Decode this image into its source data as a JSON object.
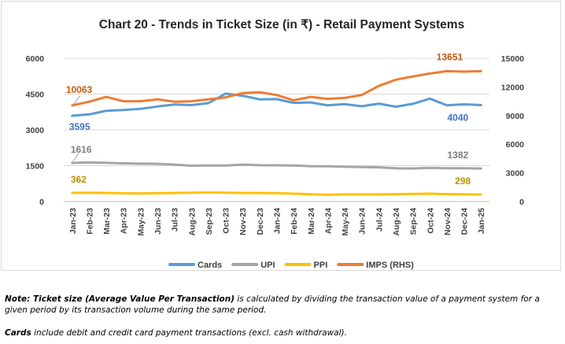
{
  "chart_data": {
    "type": "line",
    "title": "Chart 20 - Trends in Ticket Size (in ₹) - Retail Payment Systems",
    "categories": [
      "Jan-23",
      "Feb-23",
      "Mar-23",
      "Apr-23",
      "May-23",
      "Jun-23",
      "Jul-23",
      "Aug-23",
      "Sep-23",
      "Oct-23",
      "Nov-23",
      "Dec-23",
      "Jan-24",
      "Feb-24",
      "Mar-24",
      "Apr-24",
      "May-24",
      "Jun-24",
      "Jul-24",
      "Aug-24",
      "Sep-24",
      "Oct-24",
      "Nov-24",
      "Dec-24",
      "Jan-25"
    ],
    "y_left": {
      "min": 0,
      "max": 6000,
      "ticks": [
        "0",
        "1500",
        "3000",
        "4500",
        "6000"
      ]
    },
    "y_right": {
      "min": 0,
      "max": 15000,
      "ticks": [
        "0",
        "3000",
        "6000",
        "9000",
        "12000",
        "15000"
      ]
    },
    "series": [
      {
        "name": "Cards",
        "axis": "left",
        "color": "#5b9bd5",
        "values": [
          3595,
          3650,
          3800,
          3830,
          3880,
          3980,
          4060,
          4040,
          4120,
          4520,
          4430,
          4280,
          4290,
          4130,
          4150,
          4030,
          4080,
          3990,
          4100,
          3970,
          4090,
          4310,
          4030,
          4070,
          4040
        ],
        "start_label": "3595",
        "end_label": "4040"
      },
      {
        "name": "UPI",
        "axis": "left",
        "color": "#a5a5a5",
        "values": [
          1616,
          1640,
          1620,
          1600,
          1585,
          1580,
          1545,
          1500,
          1505,
          1510,
          1545,
          1520,
          1515,
          1510,
          1480,
          1475,
          1460,
          1445,
          1430,
          1390,
          1385,
          1410,
          1390,
          1395,
          1382
        ],
        "start_label": "1616",
        "end_label": "1382"
      },
      {
        "name": "PPI",
        "axis": "left",
        "color": "#ffc000",
        "values": [
          362,
          365,
          360,
          345,
          340,
          350,
          360,
          370,
          375,
          370,
          360,
          360,
          350,
          330,
          305,
          280,
          300,
          300,
          300,
          305,
          315,
          330,
          310,
          300,
          298
        ],
        "start_label": "362",
        "end_label": "298"
      },
      {
        "name": "IMPS (RHS)",
        "axis": "right",
        "color": "#ed7d31",
        "values": [
          10063,
          10450,
          10950,
          10500,
          10500,
          10700,
          10450,
          10500,
          10700,
          10900,
          11350,
          11450,
          11150,
          10600,
          10950,
          10750,
          10850,
          11150,
          12100,
          12750,
          13100,
          13400,
          13651,
          13600,
          13651
        ],
        "start_label": "10063",
        "end_label": "13651"
      }
    ],
    "legend": "bottom",
    "grid": true
  },
  "notes": {
    "note1_prefix": "Note: Ticket size (Average Value Per Transaction)",
    "note1_text": " is calculated by dividing the transaction value of a payment system for a given period by its transaction volume during the same period.",
    "note2_prefix": "Cards",
    "note2_text": " include debit and credit card payment transactions (excl. cash withdrawal)."
  }
}
